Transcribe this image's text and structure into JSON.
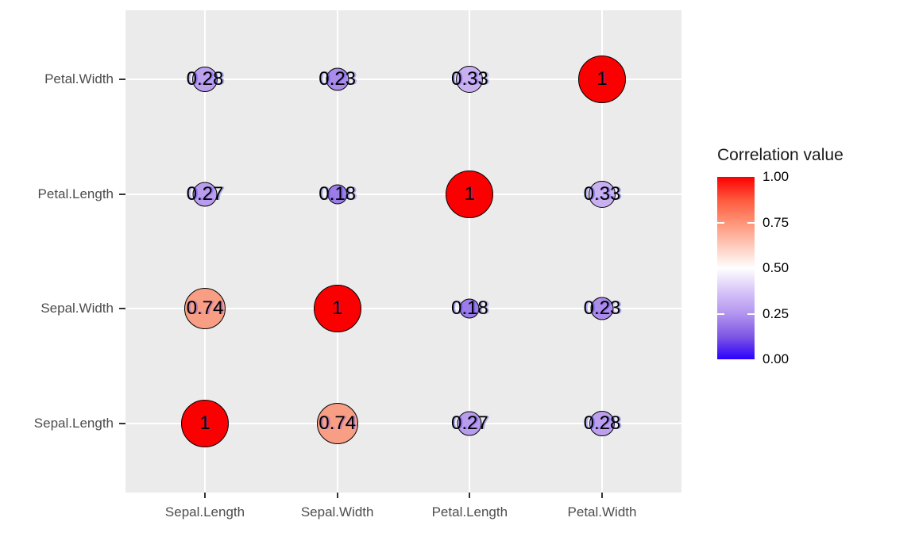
{
  "chart_data": {
    "type": "heatmap",
    "subtype": "correlation-bubble-matrix",
    "title": "",
    "xlabel": "",
    "ylabel": "",
    "x_categories": [
      "Sepal.Length",
      "Sepal.Width",
      "Petal.Length",
      "Petal.Width"
    ],
    "y_categories_top_to_bottom": [
      "Petal.Width",
      "Petal.Length",
      "Sepal.Width",
      "Sepal.Length"
    ],
    "panel_background": "#EBEBEB",
    "grid": true,
    "cells": [
      {
        "r": 0,
        "c": 0,
        "value": 0.28,
        "label": "0.28",
        "fill": "#BCA0EE",
        "diameter": 32
      },
      {
        "r": 0,
        "c": 1,
        "value": 0.23,
        "label": "0.23",
        "fill": "#AB8CE9",
        "diameter": 29
      },
      {
        "r": 0,
        "c": 2,
        "value": 0.33,
        "label": "0.33",
        "fill": "#C9B1F1",
        "diameter": 34
      },
      {
        "r": 0,
        "c": 3,
        "value": 1,
        "label": "1",
        "fill": "#FB0000",
        "diameter": 60
      },
      {
        "r": 1,
        "c": 0,
        "value": 0.27,
        "label": "0.27",
        "fill": "#B99CED",
        "diameter": 31
      },
      {
        "r": 1,
        "c": 1,
        "value": 0.18,
        "label": "0.18",
        "fill": "#9B7CE8",
        "diameter": 25
      },
      {
        "r": 1,
        "c": 2,
        "value": 1,
        "label": "1",
        "fill": "#FB0000",
        "diameter": 60
      },
      {
        "r": 1,
        "c": 3,
        "value": 0.33,
        "label": "0.33",
        "fill": "#C9B1F1",
        "diameter": 34
      },
      {
        "r": 2,
        "c": 0,
        "value": 0.74,
        "label": "0.74",
        "fill": "#F89E85",
        "diameter": 52
      },
      {
        "r": 2,
        "c": 1,
        "value": 1,
        "label": "1",
        "fill": "#FB0000",
        "diameter": 60
      },
      {
        "r": 2,
        "c": 2,
        "value": 0.18,
        "label": "0.18",
        "fill": "#9B7CE8",
        "diameter": 25
      },
      {
        "r": 2,
        "c": 3,
        "value": 0.23,
        "label": "0.23",
        "fill": "#AB8CE9",
        "diameter": 29
      },
      {
        "r": 3,
        "c": 0,
        "value": 1,
        "label": "1",
        "fill": "#FB0000",
        "diameter": 60
      },
      {
        "r": 3,
        "c": 1,
        "value": 0.74,
        "label": "0.74",
        "fill": "#F89E85",
        "diameter": 52
      },
      {
        "r": 3,
        "c": 2,
        "value": 0.27,
        "label": "0.27",
        "fill": "#B99CED",
        "diameter": 31
      },
      {
        "r": 3,
        "c": 3,
        "value": 0.28,
        "label": "0.28",
        "fill": "#BCA0EE",
        "diameter": 32
      }
    ],
    "legend": {
      "title": "Correlation value",
      "position": "right",
      "ticks": [
        "1.00",
        "0.75",
        "0.50",
        "0.25",
        "0.00"
      ],
      "range": [
        0.0,
        1.0
      ],
      "gradient": {
        "high": "#FB0000",
        "mid": "#FFFFFF",
        "low": "#2B00FE",
        "midpoint": 0.5,
        "stops": [
          [
            "0%",
            "#FB0000"
          ],
          [
            "13%",
            "#FF5B3F"
          ],
          [
            "25%",
            "#FF9377"
          ],
          [
            "38%",
            "#FFCBBC"
          ],
          [
            "50%",
            "#FFFFFF"
          ],
          [
            "62%",
            "#DAC8F8"
          ],
          [
            "75%",
            "#B295EF"
          ],
          [
            "88%",
            "#7C54E4"
          ],
          [
            "100%",
            "#2B00FE"
          ]
        ]
      }
    },
    "colors": {
      "grid": "#FFFFFF",
      "axis_text": "#4d4d4d",
      "tick_mark": "#333333",
      "bubble_stroke": "#000000"
    }
  }
}
